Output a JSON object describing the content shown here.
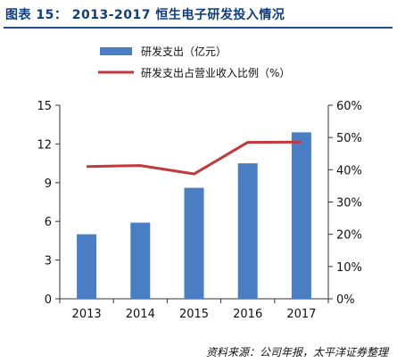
{
  "figure": {
    "title": "图表 15： 2013-2017 恒生电子研发投入情况",
    "source": "资料来源：公司年报，太平洋证券整理"
  },
  "colors": {
    "bar": "#4a7ec4",
    "line": "#c4373b",
    "title": "#0f3d80",
    "rule": "#1f4e8c"
  },
  "chart_data": {
    "type": "bar",
    "categories": [
      "2013",
      "2014",
      "2015",
      "2016",
      "2017"
    ],
    "series": [
      {
        "name": "研发支出（亿元）",
        "type": "bar",
        "axis": "left",
        "values": [
          5.0,
          5.9,
          8.6,
          10.5,
          12.9
        ]
      },
      {
        "name": "研发支出占营业收入比例（%）",
        "type": "line",
        "axis": "right",
        "values": [
          41.0,
          41.3,
          38.7,
          48.5,
          48.6
        ]
      }
    ],
    "y_left": {
      "ylim": [
        0,
        15
      ],
      "ticks": [
        "0",
        "3",
        "6",
        "9",
        "12",
        "15"
      ]
    },
    "y_right": {
      "ylim": [
        0,
        60
      ],
      "ticks": [
        "0%",
        "10%",
        "20%",
        "30%",
        "40%",
        "50%",
        "60%"
      ]
    },
    "legend_position": "top",
    "grid": false
  }
}
